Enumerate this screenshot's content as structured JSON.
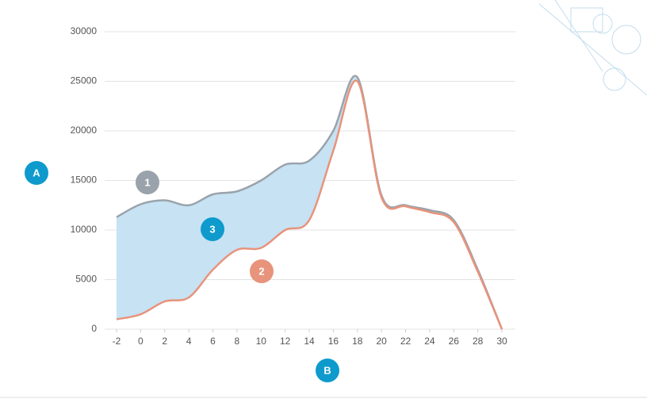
{
  "chart_data": {
    "type": "range-area",
    "x": [
      -2,
      0,
      2,
      4,
      6,
      8,
      10,
      12,
      14,
      16,
      18,
      20,
      22,
      24,
      26,
      28,
      30
    ],
    "series": [
      {
        "name": "1",
        "color": "#9aa3ab",
        "values": [
          11300,
          12600,
          13000,
          12500,
          13600,
          13900,
          15000,
          16600,
          17000,
          20000,
          25400,
          13500,
          12500,
          12000,
          11000,
          6000,
          0
        ]
      },
      {
        "name": "2",
        "color": "#e8937c",
        "values": [
          1000,
          1500,
          2800,
          3200,
          6000,
          8000,
          8200,
          10000,
          11000,
          18000,
          25000,
          13300,
          12400,
          11800,
          10800,
          5800,
          0
        ]
      }
    ],
    "band_color": "#c6e2f3",
    "annotations": [
      "3"
    ],
    "y_label": "A",
    "x_label": "B",
    "xlim": [
      -2,
      30
    ],
    "xticks": [
      -2,
      0,
      2,
      4,
      6,
      8,
      10,
      12,
      14,
      16,
      18,
      20,
      22,
      24,
      26,
      28,
      30
    ],
    "ylim": [
      0,
      30000
    ],
    "yticks": [
      0,
      5000,
      10000,
      15000,
      20000,
      25000,
      30000
    ],
    "grid": true
  }
}
